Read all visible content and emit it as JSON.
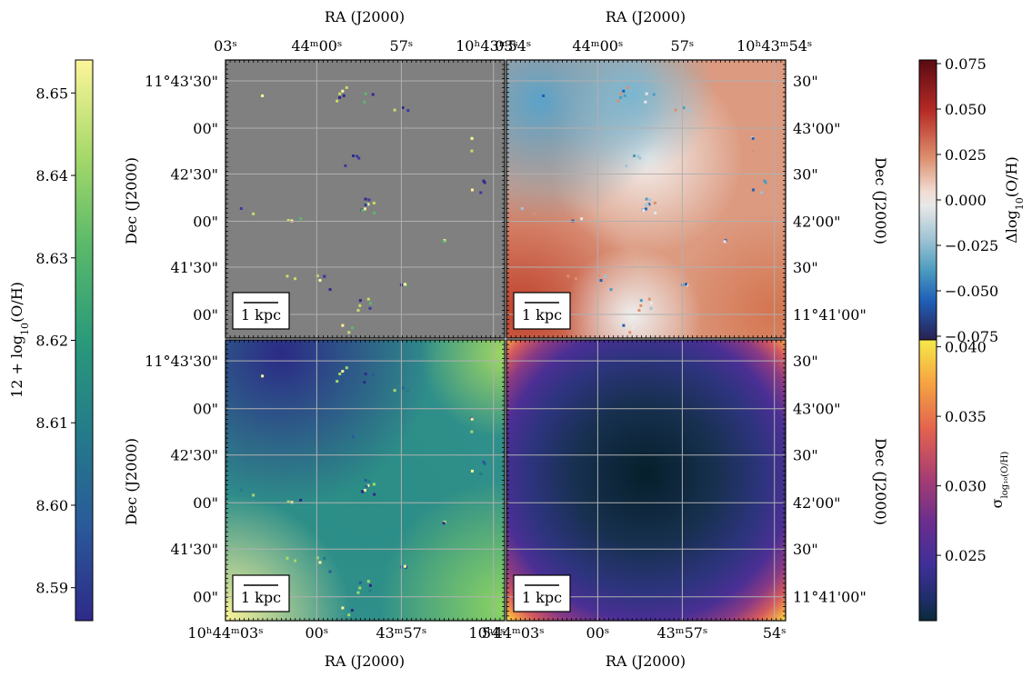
{
  "figure": {
    "scale_bar_label": "1 kpc",
    "top_axis_label": "RA (J2000)",
    "bottom_axis_label": "RA (J2000)",
    "left_axis_label": "Dec (J2000)",
    "right_axis_label": "Dec (J2000)"
  },
  "chart_data": [
    {
      "type": "heatmap",
      "panel": "top-left",
      "description_of_content": "",
      "background": "#808080",
      "colorbar": "left",
      "xaxis": {
        "position": "top",
        "ticks": [
          "03ˢ",
          "44ᵐ00ˢ",
          "57ˢ",
          "10ʰ43ᵐ54ˢ"
        ]
      },
      "yaxis": {
        "position": "left",
        "ticks": [
          "11°43'30\"",
          "00\"",
          "42'30\"",
          "00\"",
          "41'30\"",
          "00\""
        ]
      },
      "grid": true
    },
    {
      "type": "heatmap",
      "panel": "top-right",
      "colorbar": "right-top",
      "xaxis": {
        "position": "top",
        "ticks": [
          "03ˢ",
          "44ᵐ00ˢ",
          "57ˢ",
          "10ʰ43ᵐ54ˢ"
        ]
      },
      "yaxis": {
        "position": "right",
        "ticks": [
          "30\"",
          "43'00\"",
          "30\"",
          "42'00\"",
          "30\"",
          "11°41'00\""
        ]
      },
      "grid": true
    },
    {
      "type": "heatmap",
      "panel": "bottom-left",
      "colorbar": "left",
      "xaxis": {
        "position": "bottom",
        "ticks": [
          "10ʰ44ᵐ03ˢ",
          "00ˢ",
          "43ᵐ57ˢ",
          "54ˢ"
        ]
      },
      "yaxis": {
        "position": "left",
        "ticks": [
          "11°43'30\"",
          "00\"",
          "42'30\"",
          "00\"",
          "41'30\"",
          "00\""
        ]
      },
      "grid": true
    },
    {
      "type": "heatmap",
      "panel": "bottom-right",
      "colorbar": "right-bottom",
      "xaxis": {
        "position": "bottom",
        "ticks": [
          "10ʰ44ᵐ03ˢ",
          "00ˢ",
          "43ᵐ57ˢ",
          "54ˢ"
        ]
      },
      "yaxis": {
        "position": "right",
        "ticks": [
          "30\"",
          "43'00\"",
          "30\"",
          "42'00\"",
          "30\"",
          "11°41'00\""
        ]
      },
      "grid": true
    }
  ],
  "colorbars": {
    "left": {
      "label": "12 + log₁₀(O/H)",
      "colormap": "viridis-like",
      "range": [
        8.586,
        8.654
      ],
      "ticks": [
        "8.65",
        "8.64",
        "8.63",
        "8.62",
        "8.61",
        "8.60",
        "8.59"
      ],
      "stops": [
        "#fdf59a",
        "#a6d96a",
        "#5ab96a",
        "#2a9a7a",
        "#247a8a",
        "#2a5a9a",
        "#2e2a88"
      ]
    },
    "right_top": {
      "label": "Δlog₁₀(O/H)",
      "colormap": "diverging",
      "range": [
        -0.077,
        0.077
      ],
      "ticks": [
        "0.075",
        "0.050",
        "0.025",
        "0.000",
        "−0.025",
        "−0.050",
        "−0.075"
      ],
      "stops": [
        "#5a0a14",
        "#b52a25",
        "#dd8f6e",
        "#f0dcd2",
        "#e8e8e8",
        "#9fc4d4",
        "#4c9cc0",
        "#1f5fb8",
        "#2a2150"
      ]
    },
    "right_bottom": {
      "label": "σlog₁₀(O/H)",
      "colormap": "thermal-like",
      "range": [
        0.0203,
        0.0405
      ],
      "ticks": [
        "0.040",
        "0.035",
        "0.030",
        "0.025"
      ],
      "stops": [
        "#f5e94a",
        "#f6a542",
        "#e2624f",
        "#a43c74",
        "#6a2e8e",
        "#3f2f98",
        "#1f2e6a",
        "#0a2a3a"
      ]
    }
  }
}
